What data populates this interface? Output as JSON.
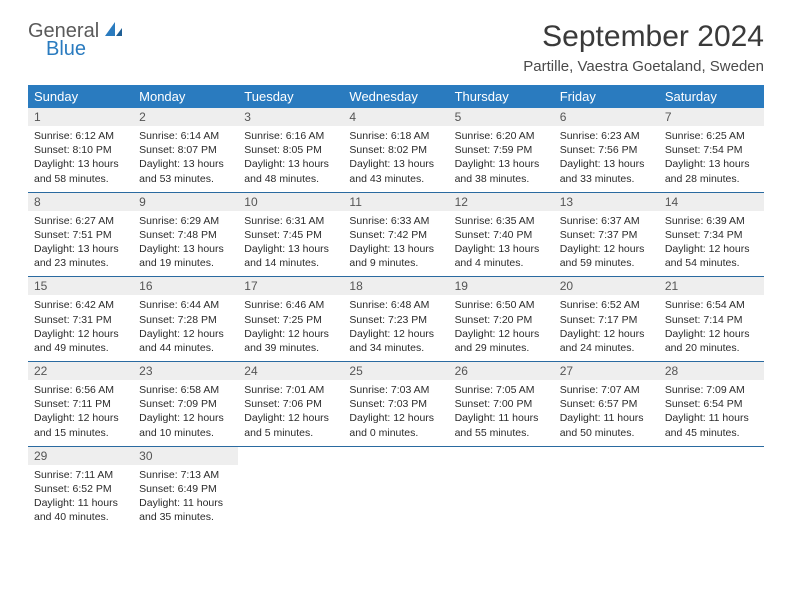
{
  "logo": {
    "word1": "General",
    "word2": "Blue"
  },
  "title": "September 2024",
  "subtitle": "Partille, Vaestra Goetaland, Sweden",
  "colors": {
    "header_bg": "#2a7bbf",
    "header_text": "#ffffff",
    "daynum_bg": "#eeeeee",
    "row_border": "#2a6aa0",
    "logo_gray": "#5a5a5a",
    "logo_blue": "#2a7bbf"
  },
  "weekdays": [
    "Sunday",
    "Monday",
    "Tuesday",
    "Wednesday",
    "Thursday",
    "Friday",
    "Saturday"
  ],
  "weeks": [
    [
      {
        "n": "1",
        "sr": "Sunrise: 6:12 AM",
        "ss": "Sunset: 8:10 PM",
        "d1": "Daylight: 13 hours",
        "d2": "and 58 minutes."
      },
      {
        "n": "2",
        "sr": "Sunrise: 6:14 AM",
        "ss": "Sunset: 8:07 PM",
        "d1": "Daylight: 13 hours",
        "d2": "and 53 minutes."
      },
      {
        "n": "3",
        "sr": "Sunrise: 6:16 AM",
        "ss": "Sunset: 8:05 PM",
        "d1": "Daylight: 13 hours",
        "d2": "and 48 minutes."
      },
      {
        "n": "4",
        "sr": "Sunrise: 6:18 AM",
        "ss": "Sunset: 8:02 PM",
        "d1": "Daylight: 13 hours",
        "d2": "and 43 minutes."
      },
      {
        "n": "5",
        "sr": "Sunrise: 6:20 AM",
        "ss": "Sunset: 7:59 PM",
        "d1": "Daylight: 13 hours",
        "d2": "and 38 minutes."
      },
      {
        "n": "6",
        "sr": "Sunrise: 6:23 AM",
        "ss": "Sunset: 7:56 PM",
        "d1": "Daylight: 13 hours",
        "d2": "and 33 minutes."
      },
      {
        "n": "7",
        "sr": "Sunrise: 6:25 AM",
        "ss": "Sunset: 7:54 PM",
        "d1": "Daylight: 13 hours",
        "d2": "and 28 minutes."
      }
    ],
    [
      {
        "n": "8",
        "sr": "Sunrise: 6:27 AM",
        "ss": "Sunset: 7:51 PM",
        "d1": "Daylight: 13 hours",
        "d2": "and 23 minutes."
      },
      {
        "n": "9",
        "sr": "Sunrise: 6:29 AM",
        "ss": "Sunset: 7:48 PM",
        "d1": "Daylight: 13 hours",
        "d2": "and 19 minutes."
      },
      {
        "n": "10",
        "sr": "Sunrise: 6:31 AM",
        "ss": "Sunset: 7:45 PM",
        "d1": "Daylight: 13 hours",
        "d2": "and 14 minutes."
      },
      {
        "n": "11",
        "sr": "Sunrise: 6:33 AM",
        "ss": "Sunset: 7:42 PM",
        "d1": "Daylight: 13 hours",
        "d2": "and 9 minutes."
      },
      {
        "n": "12",
        "sr": "Sunrise: 6:35 AM",
        "ss": "Sunset: 7:40 PM",
        "d1": "Daylight: 13 hours",
        "d2": "and 4 minutes."
      },
      {
        "n": "13",
        "sr": "Sunrise: 6:37 AM",
        "ss": "Sunset: 7:37 PM",
        "d1": "Daylight: 12 hours",
        "d2": "and 59 minutes."
      },
      {
        "n": "14",
        "sr": "Sunrise: 6:39 AM",
        "ss": "Sunset: 7:34 PM",
        "d1": "Daylight: 12 hours",
        "d2": "and 54 minutes."
      }
    ],
    [
      {
        "n": "15",
        "sr": "Sunrise: 6:42 AM",
        "ss": "Sunset: 7:31 PM",
        "d1": "Daylight: 12 hours",
        "d2": "and 49 minutes."
      },
      {
        "n": "16",
        "sr": "Sunrise: 6:44 AM",
        "ss": "Sunset: 7:28 PM",
        "d1": "Daylight: 12 hours",
        "d2": "and 44 minutes."
      },
      {
        "n": "17",
        "sr": "Sunrise: 6:46 AM",
        "ss": "Sunset: 7:25 PM",
        "d1": "Daylight: 12 hours",
        "d2": "and 39 minutes."
      },
      {
        "n": "18",
        "sr": "Sunrise: 6:48 AM",
        "ss": "Sunset: 7:23 PM",
        "d1": "Daylight: 12 hours",
        "d2": "and 34 minutes."
      },
      {
        "n": "19",
        "sr": "Sunrise: 6:50 AM",
        "ss": "Sunset: 7:20 PM",
        "d1": "Daylight: 12 hours",
        "d2": "and 29 minutes."
      },
      {
        "n": "20",
        "sr": "Sunrise: 6:52 AM",
        "ss": "Sunset: 7:17 PM",
        "d1": "Daylight: 12 hours",
        "d2": "and 24 minutes."
      },
      {
        "n": "21",
        "sr": "Sunrise: 6:54 AM",
        "ss": "Sunset: 7:14 PM",
        "d1": "Daylight: 12 hours",
        "d2": "and 20 minutes."
      }
    ],
    [
      {
        "n": "22",
        "sr": "Sunrise: 6:56 AM",
        "ss": "Sunset: 7:11 PM",
        "d1": "Daylight: 12 hours",
        "d2": "and 15 minutes."
      },
      {
        "n": "23",
        "sr": "Sunrise: 6:58 AM",
        "ss": "Sunset: 7:09 PM",
        "d1": "Daylight: 12 hours",
        "d2": "and 10 minutes."
      },
      {
        "n": "24",
        "sr": "Sunrise: 7:01 AM",
        "ss": "Sunset: 7:06 PM",
        "d1": "Daylight: 12 hours",
        "d2": "and 5 minutes."
      },
      {
        "n": "25",
        "sr": "Sunrise: 7:03 AM",
        "ss": "Sunset: 7:03 PM",
        "d1": "Daylight: 12 hours",
        "d2": "and 0 minutes."
      },
      {
        "n": "26",
        "sr": "Sunrise: 7:05 AM",
        "ss": "Sunset: 7:00 PM",
        "d1": "Daylight: 11 hours",
        "d2": "and 55 minutes."
      },
      {
        "n": "27",
        "sr": "Sunrise: 7:07 AM",
        "ss": "Sunset: 6:57 PM",
        "d1": "Daylight: 11 hours",
        "d2": "and 50 minutes."
      },
      {
        "n": "28",
        "sr": "Sunrise: 7:09 AM",
        "ss": "Sunset: 6:54 PM",
        "d1": "Daylight: 11 hours",
        "d2": "and 45 minutes."
      }
    ],
    [
      {
        "n": "29",
        "sr": "Sunrise: 7:11 AM",
        "ss": "Sunset: 6:52 PM",
        "d1": "Daylight: 11 hours",
        "d2": "and 40 minutes."
      },
      {
        "n": "30",
        "sr": "Sunrise: 7:13 AM",
        "ss": "Sunset: 6:49 PM",
        "d1": "Daylight: 11 hours",
        "d2": "and 35 minutes."
      },
      null,
      null,
      null,
      null,
      null
    ]
  ]
}
